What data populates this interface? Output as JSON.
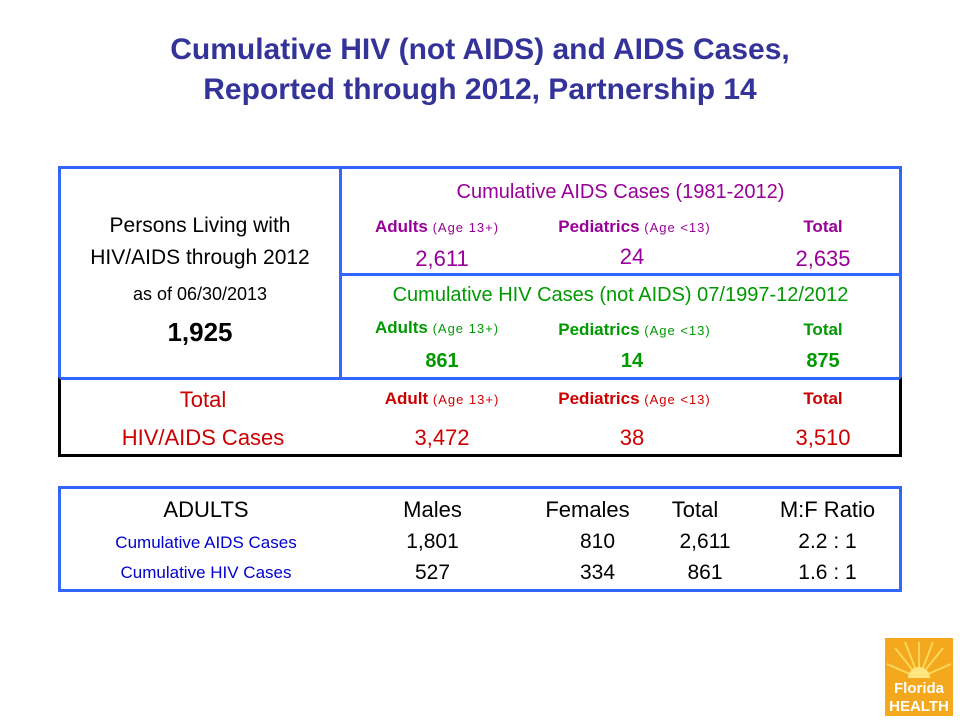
{
  "title": {
    "line1": "Cumulative HIV (not AIDS) and AIDS Cases,",
    "line2": "Reported through 2012, Partnership 14"
  },
  "living": {
    "line1": "Persons Living with",
    "line2": "HIV/AIDS through 2012",
    "line3": "as of 06/30/2013",
    "count": "1,925"
  },
  "aids": {
    "heading": "Cumulative AIDS Cases (1981-2012)",
    "adults_label": "Adults",
    "adults_age": "(Age 13+)",
    "peds_label": "Pediatrics",
    "peds_age": "(Age <13)",
    "total_label": "Total",
    "adults": "2,611",
    "peds": "24",
    "total": "2,635"
  },
  "hiv": {
    "heading": "Cumulative HIV Cases (not AIDS) 07/1997-12/2012",
    "adults_label": "Adults",
    "adults_age": "(Age 13+)",
    "peds_label": "Pediatrics",
    "peds_age": "(Age <13)",
    "total_label": "Total",
    "adults": "861",
    "peds": "14",
    "total": "875"
  },
  "totals": {
    "label": "Total",
    "row_label": "HIV/AIDS Cases",
    "adult_label": "Adult",
    "adult_age": "(Age 13+)",
    "peds_label": "Pediatrics",
    "peds_age": "(Age <13)",
    "total_label": "Total",
    "adult": "3,472",
    "peds": "38",
    "total": "3,510"
  },
  "adults_table": {
    "headers": [
      "ADULTS",
      "Males",
      "Females",
      "Total",
      "M:F Ratio"
    ],
    "rows": [
      {
        "label": "Cumulative AIDS Cases",
        "males": "1,801",
        "females": "810",
        "total": "2,611",
        "ratio": "2.2 : 1"
      },
      {
        "label": "Cumulative HIV Cases",
        "males": "527",
        "females": "334",
        "total": "861",
        "ratio": "1.6 : 1"
      }
    ]
  },
  "logo": {
    "line1": "Florida",
    "line2": "HEALTH"
  },
  "colors": {
    "title": "#333399",
    "border": "#3366ff",
    "purple": "#990099",
    "green": "#009900",
    "red": "#cc0000"
  }
}
